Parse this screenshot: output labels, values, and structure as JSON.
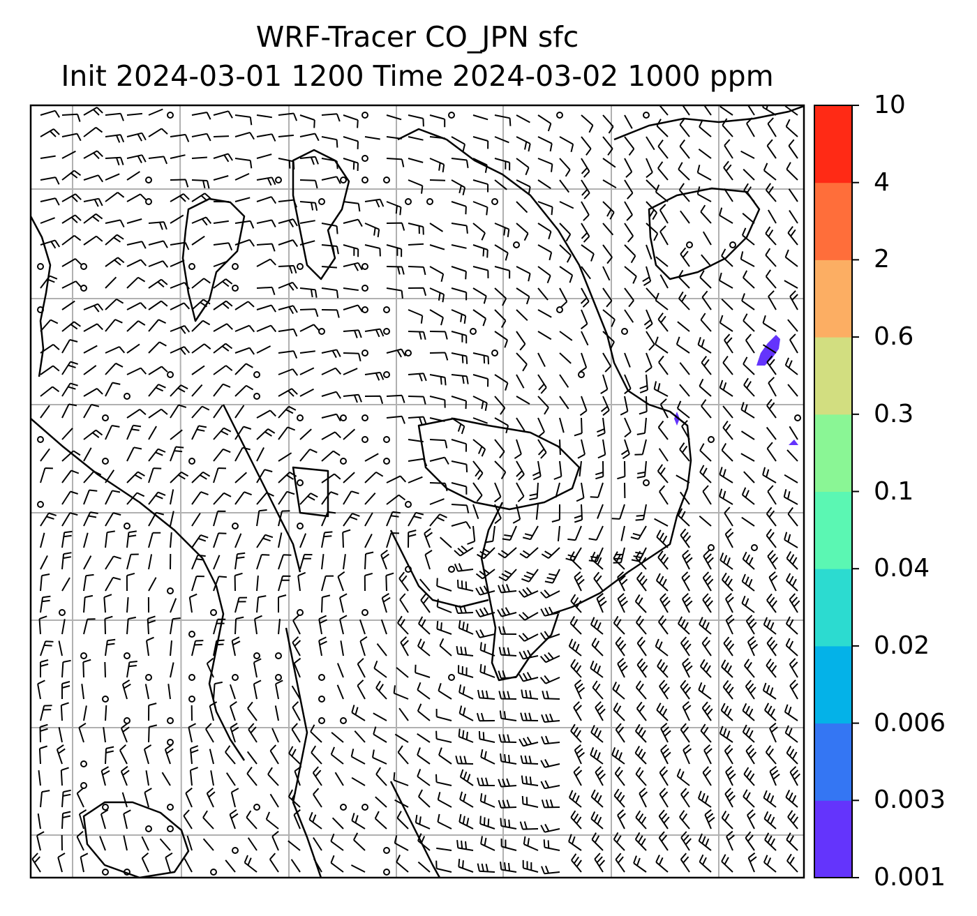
{
  "title": {
    "line1": "WRF-Tracer CO_JPN sfc",
    "line2": "Init 2024-03-01 1200 Time 2024-03-02 1000 ppm"
  },
  "colorbar": {
    "levels": [
      "0.001",
      "0.003",
      "0.006",
      "0.02",
      "0.04",
      "0.1",
      "0.3",
      "0.6",
      "2",
      "4",
      "10"
    ],
    "colors": [
      "#6434fc",
      "#3476f3",
      "#04b2e8",
      "#2cdbd0",
      "#5bf7b3",
      "#8af695",
      "#d2de80",
      "#fcae63",
      "#ff6e3a",
      "#ff2a15"
    ]
  },
  "map": {
    "background": "#ffffff",
    "gridline_color": "#b0b0b0",
    "coastline_color": "#000000",
    "tracer_patch_color": "#6434fc"
  }
}
